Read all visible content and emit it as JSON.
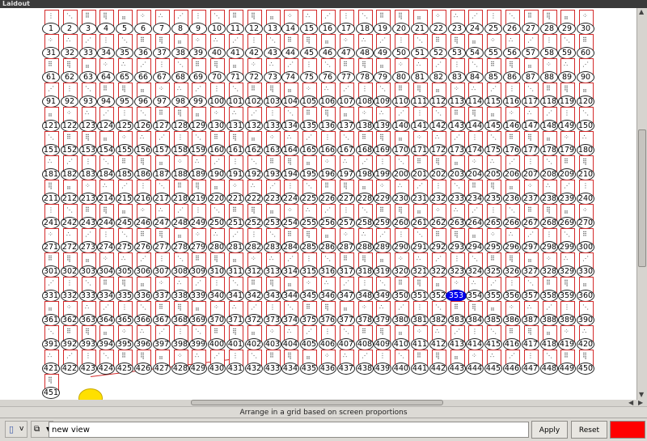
{
  "window": {
    "title": "Laidout"
  },
  "grid": {
    "columns": 30,
    "total_cells": 451,
    "selected_cell": 353,
    "thumb_glyphs": [
      "⋰",
      "∴",
      "⁘",
      "⣤",
      "⢿",
      "⠿",
      "⋱",
      "⋮"
    ]
  },
  "status": {
    "message": "Arrange in a grid based on screen proportions"
  },
  "toolbar": {
    "view_menu_icon": "doc-icon",
    "view_menu_label": "v",
    "layout_menu_icon": "layout-icon",
    "layout_menu_arrow": "▼",
    "view_name_value": "new view",
    "apply_label": "Apply",
    "reset_label": "Reset",
    "color_swatch": "#ff0000"
  },
  "colors": {
    "cell_border": "#d42a2a",
    "selected": "#0000ee",
    "marker": "#ffe000"
  }
}
